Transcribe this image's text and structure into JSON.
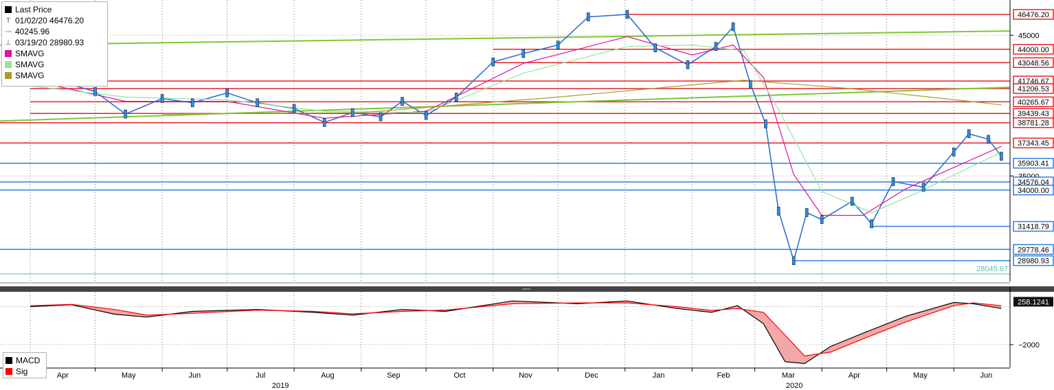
{
  "legend": {
    "title": "Last Price",
    "high": "01/02/20 46476.20",
    "avg": "40245.96",
    "low": "03/19/20 28980.93",
    "sma1": "SMAVG",
    "sma2": "SMAVG",
    "sma3": "SMAVG",
    "title_color": "#000000",
    "sma1_color": "#e0119a",
    "sma2_color": "#8fe89a",
    "sma3_color": "#a89a2e"
  },
  "macd_legend": {
    "macd": "MACD",
    "sig": "Sig",
    "macd_color": "#000000",
    "sig_color": "#ff0000"
  },
  "chart_data": [
    {
      "type": "line",
      "title": "",
      "x_months": [
        "Apr",
        "May",
        "Jun",
        "Jul",
        "Aug",
        "Sep",
        "Oct",
        "Nov",
        "Dec",
        "Jan",
        "Feb",
        "Mar",
        "Apr",
        "May",
        "Jun"
      ],
      "x_years": [
        "2019",
        "2020"
      ],
      "ylim": [
        27500,
        47500
      ],
      "y_ticks": [
        45000,
        35000
      ],
      "grid": true,
      "series": [
        {
          "x": [
            "2019-04-01",
            "2019-04-15",
            "2019-05-01",
            "2019-05-15",
            "2019-06-01",
            "2019-06-15",
            "2019-07-01",
            "2019-07-15",
            "2019-08-01",
            "2019-08-15",
            "2019-08-28",
            "2019-09-10",
            "2019-09-20",
            "2019-10-01",
            "2019-10-15",
            "2019-11-01",
            "2019-11-15",
            "2019-12-01",
            "2019-12-15",
            "2020-01-02",
            "2020-01-15",
            "2020-01-30",
            "2020-02-12",
            "2020-02-20",
            "2020-02-28",
            "2020-03-06",
            "2020-03-12",
            "2020-03-19",
            "2020-03-25",
            "2020-04-01",
            "2020-04-15",
            "2020-04-24",
            "2020-05-04",
            "2020-05-18",
            "2020-06-01",
            "2020-06-08",
            "2020-06-17",
            "2020-06-23"
          ],
          "values": [
            41900,
            41700,
            41000,
            39400,
            40500,
            40200,
            40900,
            40200,
            39800,
            38800,
            39500,
            39200,
            40300,
            39300,
            40600,
            43100,
            43700,
            44300,
            46300,
            46476.2,
            44100,
            42900,
            44200,
            45600,
            41500,
            38700,
            32500,
            28980.93,
            32400,
            31900,
            33200,
            31600,
            34600,
            34200,
            36700,
            38000,
            37600,
            36400
          ]
        },
        {
          "name": "SMAVG",
          "color": "#e0119a",
          "x": [
            "2019-04-01",
            "2019-05-15",
            "2019-07-01",
            "2019-08-15",
            "2019-10-01",
            "2019-11-15",
            "2020-01-02",
            "2020-02-01",
            "2020-02-20",
            "2020-03-05",
            "2020-03-19",
            "2020-04-01",
            "2020-04-20",
            "2020-05-10",
            "2020-06-01",
            "2020-06-23"
          ],
          "values": [
            41800,
            40300,
            40300,
            39100,
            39600,
            43000,
            44900,
            43600,
            44300,
            42000,
            35100,
            32200,
            32200,
            34100,
            35600,
            37100
          ]
        },
        {
          "name": "SMAVG",
          "color": "#8fe89a",
          "x": [
            "2019-04-01",
            "2019-05-15",
            "2019-07-01",
            "2019-08-15",
            "2019-10-01",
            "2019-11-15",
            "2020-01-02",
            "2020-02-01",
            "2020-02-25",
            "2020-03-12",
            "2020-04-01",
            "2020-04-24",
            "2020-05-15",
            "2020-06-23"
          ],
          "values": [
            41400,
            40600,
            40400,
            39600,
            39500,
            42300,
            44200,
            44300,
            43900,
            39700,
            33900,
            32400,
            33800,
            36700
          ]
        },
        {
          "name": "SMAVG",
          "color": "#a89a2e",
          "x": [
            "2019-06-01",
            "2019-09-01",
            "2019-12-01",
            "2020-02-25",
            "2020-04-15",
            "2020-06-23"
          ],
          "values": [
            39400,
            39500,
            40600,
            41800,
            41200,
            40050
          ]
        }
      ],
      "price_levels": {
        "red": [
          46476.2,
          44000.0,
          43048.56,
          41746.67,
          41206.53,
          40265.67,
          39439.43,
          38781.28,
          37343.45
        ],
        "blue": [
          35903.41,
          34576.04,
          34000.0,
          31418.79,
          29778.46,
          28980.93
        ],
        "other": [
          28045.67
        ]
      },
      "price_labels": [
        "46476.20",
        "44000.00",
        "43048.56",
        "41746.67",
        "41206.53",
        "40265.67",
        "39439.43",
        "38781.28",
        "37343.45",
        "35903.41",
        "34576.04",
        "34000.00",
        "31418.79",
        "29778.46",
        "28980.93",
        "28045.67"
      ]
    },
    {
      "type": "line",
      "title": "",
      "ylim": [
        -3200,
        600
      ],
      "y_ticks": [
        -2000
      ],
      "current_label": "258.1241",
      "series": [
        {
          "name": "MACD",
          "color": "#000000",
          "x": [
            "2019-04-01",
            "2019-04-20",
            "2019-05-10",
            "2019-05-25",
            "2019-06-15",
            "2019-07-15",
            "2019-08-10",
            "2019-08-28",
            "2019-09-20",
            "2019-10-10",
            "2019-11-10",
            "2019-12-10",
            "2020-01-02",
            "2020-01-25",
            "2020-02-10",
            "2020-02-22",
            "2020-03-05",
            "2020-03-15",
            "2020-03-24",
            "2020-04-05",
            "2020-04-20",
            "2020-05-10",
            "2020-06-01",
            "2020-06-10",
            "2020-06-23"
          ],
          "values": [
            0,
            100,
            -400,
            -550,
            -250,
            -150,
            -300,
            -450,
            -150,
            -250,
            300,
            150,
            300,
            -100,
            -300,
            50,
            -900,
            -2900,
            -3000,
            -2100,
            -1400,
            -500,
            220,
            150,
            -100
          ]
        },
        {
          "name": "Sig",
          "color": "#ff0000",
          "x": [
            "2019-04-01",
            "2019-04-20",
            "2019-05-10",
            "2019-05-25",
            "2019-06-15",
            "2019-07-15",
            "2019-08-10",
            "2019-08-28",
            "2019-09-20",
            "2019-10-10",
            "2019-11-10",
            "2019-12-10",
            "2020-01-02",
            "2020-01-25",
            "2020-02-10",
            "2020-02-22",
            "2020-03-05",
            "2020-03-15",
            "2020-03-24",
            "2020-04-05",
            "2020-04-20",
            "2020-05-10",
            "2020-06-01",
            "2020-06-10",
            "2020-06-23"
          ],
          "values": [
            50,
            120,
            -150,
            -450,
            -350,
            -180,
            -250,
            -380,
            -250,
            -180,
            150,
            200,
            200,
            0,
            -200,
            -100,
            -300,
            -1500,
            -2600,
            -2400,
            -1700,
            -800,
            50,
            200,
            50
          ]
        }
      ]
    }
  ]
}
